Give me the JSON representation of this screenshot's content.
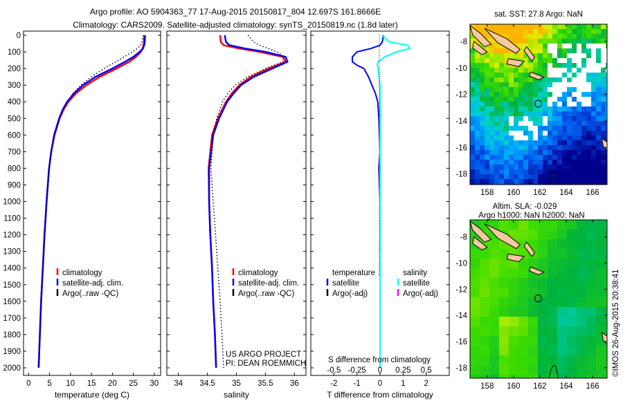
{
  "header": {
    "title_line1": "Argo profile: AO 5904363_77 17-Aug-2015 20150817_804 12.697S 161.8666E",
    "title_line2": "Climatology: CARS2009. Satellite-adjusted climatology: synTS_20150819.nc (1.8d later)"
  },
  "credit": "©IMOS 26-Aug-2015 20:38:41",
  "colors": {
    "climatology": "#ff0000",
    "satellite": "#0000ff",
    "argo": "#000000",
    "sal_satellite": "#00ffff",
    "sal_argo": "#ff00ff"
  },
  "chart_data": [
    {
      "type": "line",
      "name": "temperature",
      "xlabel": "temperature (deg C)",
      "ylabel": "",
      "xlim": [
        -1.2,
        31.5
      ],
      "ylim": [
        2050,
        0
      ],
      "xticks": [
        0,
        5,
        10,
        15,
        20,
        25,
        30
      ],
      "yticks": [
        0,
        100,
        200,
        300,
        400,
        500,
        600,
        700,
        800,
        900,
        1000,
        1100,
        1200,
        1300,
        1400,
        1500,
        1600,
        1700,
        1800,
        1900,
        2000
      ],
      "legend": [
        "climatology",
        "satellite-adj. clim.",
        "Argo(..raw -QC)"
      ],
      "legend_placement": "lower-center",
      "depth": [
        0,
        50,
        80,
        100,
        130,
        160,
        200,
        250,
        300,
        350,
        400,
        450,
        500,
        600,
        700,
        800,
        1000,
        1200,
        1400,
        1600,
        1800,
        2000
      ],
      "series": [
        {
          "name": "climatology",
          "values": [
            27.6,
            27.5,
            27.2,
            26.8,
            25.6,
            24.0,
            21.0,
            17.0,
            13.8,
            11.3,
            9.5,
            8.3,
            7.4,
            6.2,
            5.4,
            4.9,
            4.3,
            3.8,
            3.4,
            3.0,
            2.7,
            2.4
          ]
        },
        {
          "name": "satellite-adj. clim.",
          "values": [
            27.8,
            27.7,
            27.3,
            26.5,
            25.0,
            23.0,
            20.0,
            16.0,
            13.0,
            10.8,
            9.2,
            8.1,
            7.3,
            6.1,
            5.4,
            4.9,
            4.3,
            3.8,
            3.4,
            3.0,
            2.7,
            2.4
          ]
        },
        {
          "name": "Argo(..raw -QC)",
          "values": [
            27.4,
            27.0,
            26.0,
            24.8,
            22.8,
            20.8,
            18.0,
            15.0,
            12.5,
            10.6,
            9.2,
            8.2,
            7.4,
            6.2,
            5.4,
            4.9,
            4.3,
            3.8,
            3.4,
            3.0,
            2.7,
            2.4
          ]
        }
      ]
    },
    {
      "type": "line",
      "name": "salinity",
      "xlabel": "salinity",
      "xlim": [
        33.8,
        36.2
      ],
      "ylim": [
        2050,
        0
      ],
      "xticks": [
        34,
        34.5,
        35,
        35.5,
        36
      ],
      "legend": [
        "climatology",
        "satellite-adj. clim.",
        "Argo(..raw -QC)"
      ],
      "annotations": [
        "US ARGO PROJECT",
        "PI: DEAN ROEMMICH"
      ],
      "depth": [
        0,
        40,
        60,
        80,
        100,
        130,
        160,
        200,
        250,
        300,
        350,
        400,
        500,
        600,
        800,
        1000,
        1200,
        1400,
        1600,
        1800,
        2000
      ],
      "series": [
        {
          "name": "climatology",
          "values": [
            34.72,
            34.73,
            34.78,
            35.05,
            35.4,
            35.8,
            35.85,
            35.55,
            35.25,
            35.05,
            34.92,
            34.82,
            34.68,
            34.58,
            34.52,
            34.53,
            34.55,
            34.58,
            34.6,
            34.63,
            34.65
          ]
        },
        {
          "name": "satellite-adj. clim.",
          "values": [
            34.8,
            34.82,
            34.88,
            35.15,
            35.5,
            35.85,
            35.88,
            35.62,
            35.3,
            35.08,
            34.95,
            34.84,
            34.7,
            34.6,
            34.53,
            34.53,
            34.55,
            34.58,
            34.6,
            34.63,
            34.65
          ]
        },
        {
          "name": "Argo(..raw -QC)",
          "values": [
            35.2,
            35.3,
            35.4,
            35.55,
            35.7,
            35.82,
            35.8,
            35.5,
            35.2,
            34.98,
            34.85,
            34.76,
            34.66,
            34.6,
            34.56,
            34.6,
            34.64,
            34.68,
            34.72,
            34.75,
            34.78
          ]
        }
      ]
    },
    {
      "type": "line",
      "name": "difference",
      "xlabel": "T difference from climatology",
      "xlabel_top": "S difference from climatology",
      "xlim": [
        -3,
        3
      ],
      "ylim": [
        2050,
        0
      ],
      "xticks": [
        -2,
        -1,
        0,
        1,
        2
      ],
      "xticks_s": [
        "-0.5",
        "-0.25",
        "0",
        "0.25",
        "0.5"
      ],
      "legend_t": {
        "title": "temperature",
        "items": [
          "satellite",
          "Argo(-adj)"
        ]
      },
      "legend_s": {
        "title": "salinity",
        "items": [
          "satellite",
          "Argo(-adj)"
        ]
      },
      "depth": [
        0,
        40,
        60,
        80,
        100,
        130,
        160,
        180,
        200,
        250,
        300,
        350,
        400,
        500,
        700,
        800,
        1000,
        1500,
        2000
      ],
      "series": [
        {
          "name": "T satellite",
          "values": [
            0.15,
            0.1,
            0,
            -0.4,
            -1.0,
            -1.2,
            -1.2,
            -1.0,
            -0.7,
            -0.5,
            -0.35,
            -0.2,
            -0.1,
            -0.05,
            0,
            -0.05,
            0,
            0,
            0
          ]
        },
        {
          "name": "S satellite",
          "values": [
            0.02,
            0.1,
            0.3,
            0.32,
            0.18,
            0.05,
            -0.02,
            -0.03,
            -0.02,
            -0.01,
            0,
            0,
            0,
            0,
            0,
            0,
            0,
            0,
            0
          ]
        }
      ]
    }
  ],
  "maps": [
    {
      "title": "sat. SST: 27.8 Argo: NaN",
      "xticks": [
        158,
        160,
        162,
        164,
        166
      ],
      "yticks": [
        -8,
        -10,
        -12,
        -14,
        -16,
        -18
      ],
      "lon": [
        156.7,
        167.1
      ],
      "lat": [
        -6.7,
        -18.8
      ],
      "float": [
        161.87,
        -12.7
      ]
    },
    {
      "title_line1": "Altim. SLA: -0.029",
      "title_line2": "Argo h1000: NaN h2000: NaN",
      "xticks": [
        158,
        160,
        162,
        164,
        166
      ],
      "yticks": [
        -8,
        -10,
        -12,
        -14,
        -16,
        -18
      ],
      "lon": [
        156.7,
        167.1
      ],
      "lat": [
        -6.7,
        -18.8
      ],
      "float": [
        161.87,
        -12.7
      ]
    }
  ]
}
